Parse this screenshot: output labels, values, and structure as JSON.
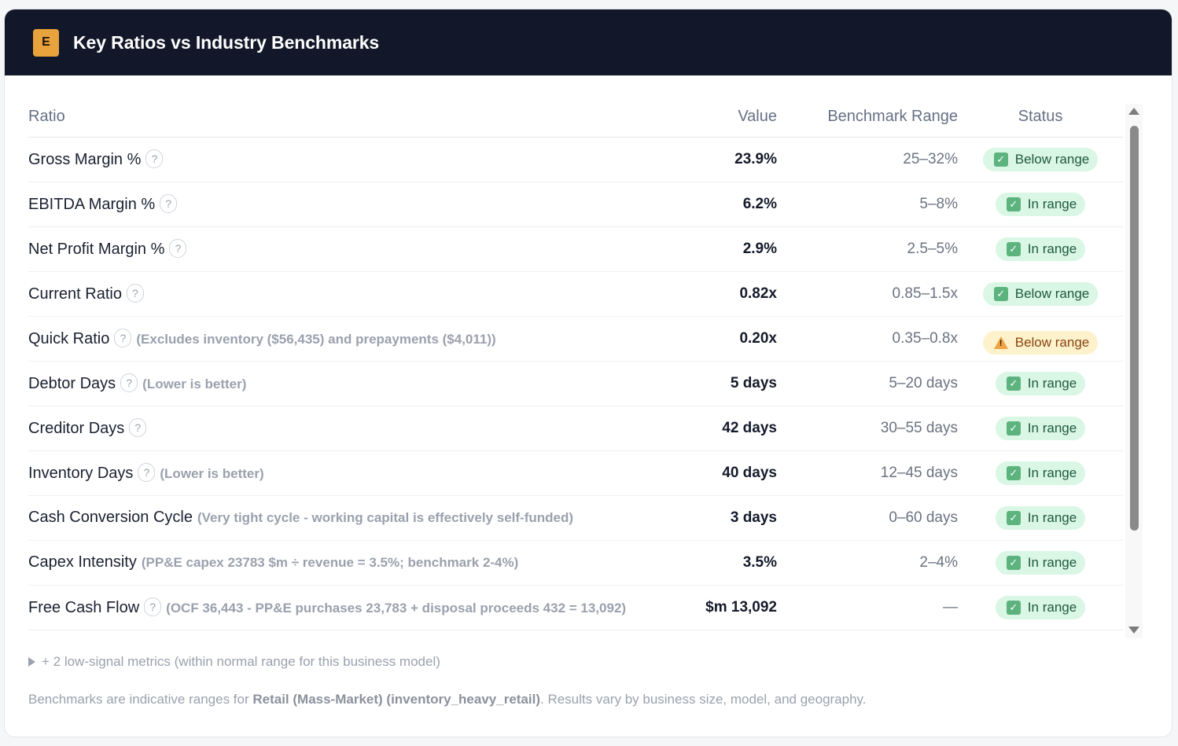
{
  "header": {
    "badge_letter": "E",
    "title": "Key Ratios vs Industry Benchmarks"
  },
  "table": {
    "columns": {
      "ratio": "Ratio",
      "value": "Value",
      "benchmark": "Benchmark Range",
      "status": "Status"
    },
    "rows": [
      {
        "name": "Gross Margin %",
        "help": "?",
        "note": "",
        "value": "23.9%",
        "benchmark": "25–32%",
        "status": "Below range",
        "status_type": "ok"
      },
      {
        "name": "EBITDA Margin %",
        "help": "?",
        "note": "",
        "value": "6.2%",
        "benchmark": "5–8%",
        "status": "In range",
        "status_type": "ok"
      },
      {
        "name": "Net Profit Margin %",
        "help": "?",
        "note": "",
        "value": "2.9%",
        "benchmark": "2.5–5%",
        "status": "In range",
        "status_type": "ok"
      },
      {
        "name": "Current Ratio",
        "help": "?",
        "note": "",
        "value": "0.82x",
        "benchmark": "0.85–1.5x",
        "status": "Below range",
        "status_type": "ok"
      },
      {
        "name": "Quick Ratio",
        "help": "?",
        "note": "(Excludes inventory ($56,435) and prepayments ($4,011))",
        "value": "0.20x",
        "benchmark": "0.35–0.8x",
        "status": "Below range",
        "status_type": "warn"
      },
      {
        "name": "Debtor Days",
        "help": "?",
        "note": "(Lower is better)",
        "value": "5 days",
        "benchmark": "5–20 days",
        "status": "In range",
        "status_type": "ok"
      },
      {
        "name": "Creditor Days",
        "help": "?",
        "note": "",
        "value": "42 days",
        "benchmark": "30–55 days",
        "status": "In range",
        "status_type": "ok"
      },
      {
        "name": "Inventory Days",
        "help": "?",
        "note": "(Lower is better)",
        "value": "40 days",
        "benchmark": "12–45 days",
        "status": "In range",
        "status_type": "ok"
      },
      {
        "name": "Cash Conversion Cycle",
        "help": "",
        "note": "(Very tight cycle - working capital is effectively self-funded)",
        "value": "3 days",
        "benchmark": "0–60 days",
        "status": "In range",
        "status_type": "ok"
      },
      {
        "name": "Capex Intensity",
        "help": "",
        "note": "(PP&E capex 23783 $m ÷ revenue = 3.5%; benchmark 2-4%)",
        "value": "3.5%",
        "benchmark": "2–4%",
        "status": "In range",
        "status_type": "ok"
      },
      {
        "name": "Free Cash Flow",
        "help": "?",
        "note": "(OCF 36,443 - PP&E purchases 23,783 + disposal proceeds 432 = 13,092)",
        "value": "$m 13,092",
        "benchmark": "—",
        "status": "In range",
        "status_type": "ok"
      }
    ]
  },
  "status_icons": {
    "ok": "✓",
    "warn": "!"
  },
  "colors": {
    "header_bg": "#121829",
    "badge_bg": "#e8a33c",
    "ok_bg": "#daf6e5",
    "ok_text": "#1e5a3a",
    "warn_bg": "#fdf2cc",
    "warn_text": "#8a4510"
  },
  "low_signal": {
    "label": "+ 2 low-signal metrics (within normal range for this business model)"
  },
  "footnote": {
    "prefix": "Benchmarks are indicative ranges for ",
    "industry": "Retail (Mass-Market) (inventory_heavy_retail)",
    "suffix": ". Results vary by business size, model, and geography."
  }
}
